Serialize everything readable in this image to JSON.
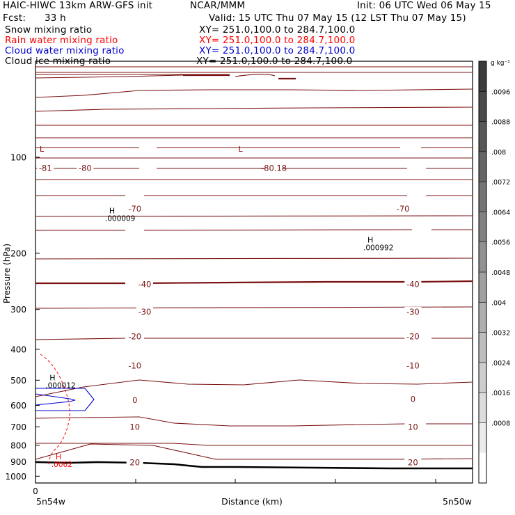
{
  "header": {
    "title": "HAIC-HIWC 13km ARW-GFS init",
    "org": "NCAR/MMM",
    "init": "Init: 06 UTC Wed 06 May 15",
    "fcst_label": "Fcst:",
    "fcst_value": "33 h",
    "valid": "Valid: 15 UTC Thu 07 May 15 (12 LST Thu 07 May 15)"
  },
  "fields": [
    {
      "label": "Snow mixing ratio",
      "xy": "XY= 251.0,100.0 to 284.7,100.0",
      "color": "#000000"
    },
    {
      "label": "Rain water mixing ratio",
      "xy": "XY= 251.0,100.0 to 284.7,100.0",
      "color": "#ff0000"
    },
    {
      "label": "Cloud water mixing ratio",
      "xy": "XY= 251.0,100.0 to 284.7,100.0",
      "color": "#0000cc"
    },
    {
      "label": "Cloud ice mixing ratio",
      "xy": "XY= 251.0,100.0 to 284.7,100.0",
      "color": "#000000"
    }
  ],
  "chart_data": {
    "type": "contour",
    "ylabel": "Pressure (hPa)",
    "xlabel": "Distance (km)",
    "xticks": [
      "0"
    ],
    "x_endpoints": [
      "5n54w",
      "5n50w"
    ],
    "y_ticks": [
      100,
      200,
      300,
      400,
      500,
      600,
      700,
      800,
      900,
      1000
    ],
    "ylim": [
      1050,
      50
    ],
    "y_scale": "log",
    "colorbar": {
      "unit": "g kg⁻¹",
      "levels": [
        ".0096",
        ".0088",
        ".008",
        ".0072",
        ".0064",
        ".0056",
        ".0048",
        ".004",
        ".0032",
        ".0024",
        ".0016",
        ".0008"
      ],
      "colors": [
        "#3c3c3c",
        "#4a4a4a",
        "#575757",
        "#656565",
        "#747474",
        "#828282",
        "#919191",
        "#a0a0a0",
        "#afafaf",
        "#bebebe",
        "#cdcdcd",
        "#dcdcdc",
        "#ebebeb",
        "#ffffff"
      ]
    },
    "temperature_labels": [
      {
        "text": "-80",
        "x": 0.25,
        "p": 108
      },
      {
        "text": "-80.18",
        "x": 1.2,
        "p": 108
      },
      {
        "text": "-81",
        "x": 0.05,
        "p": 108
      },
      {
        "text": "-70",
        "x": 0.5,
        "p": 145
      },
      {
        "text": "-70",
        "x": 1.85,
        "p": 145
      },
      {
        "text": "-40",
        "x": 0.55,
        "p": 250
      },
      {
        "text": "-40",
        "x": 1.9,
        "p": 250
      },
      {
        "text": "-30",
        "x": 0.55,
        "p": 305
      },
      {
        "text": "-30",
        "x": 1.9,
        "p": 305
      },
      {
        "text": "-20",
        "x": 0.5,
        "p": 365
      },
      {
        "text": "-20",
        "x": 1.9,
        "p": 365
      },
      {
        "text": "-10",
        "x": 0.5,
        "p": 450
      },
      {
        "text": "-10",
        "x": 1.9,
        "p": 450
      },
      {
        "text": "0",
        "x": 0.5,
        "p": 578
      },
      {
        "text": "0",
        "x": 1.9,
        "p": 573
      },
      {
        "text": "10",
        "x": 0.5,
        "p": 700
      },
      {
        "text": "10",
        "x": 1.9,
        "p": 700
      },
      {
        "text": "20",
        "x": 0.5,
        "p": 905
      },
      {
        "text": "20",
        "x": 1.9,
        "p": 905
      }
    ],
    "hl_labels": [
      {
        "mark": "L",
        "x": 0.0,
        "p": 96,
        "color": "#8b0000"
      },
      {
        "mark": "L",
        "x": 1.0,
        "p": 96,
        "color": "#8b0000"
      },
      {
        "mark": "H",
        "value": ".000009",
        "x": 0.35,
        "p": 150,
        "color": "#000000"
      },
      {
        "mark": "H",
        "value": ".000992",
        "x": 1.65,
        "p": 185,
        "color": "#000000"
      },
      {
        "mark": "H",
        "value": ".000012",
        "x": 0.05,
        "p": 500,
        "color": "#000000"
      },
      {
        "mark": "H",
        "value": ".0062",
        "x": 0.08,
        "p": 885,
        "color": "#ff0000"
      }
    ]
  }
}
